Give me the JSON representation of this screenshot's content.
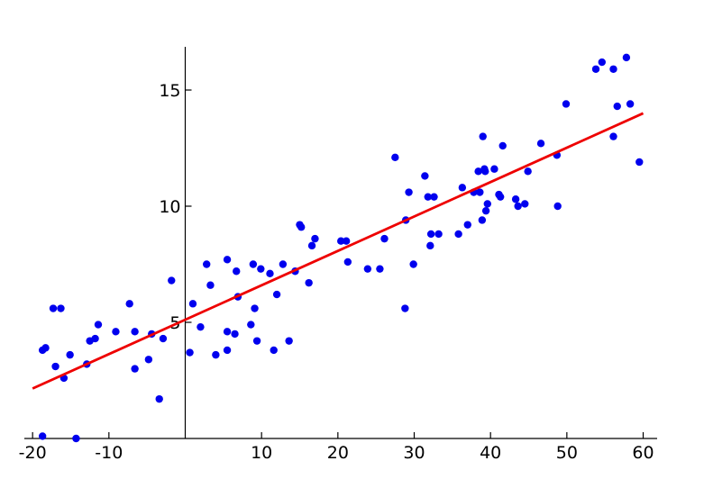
{
  "chart_data": {
    "type": "scatter",
    "title": "",
    "xlabel": "",
    "ylabel": "",
    "xlim": [
      -20,
      60
    ],
    "ylim": [
      0,
      16.5
    ],
    "grid": false,
    "legend": "none",
    "x_ticks": [
      -20,
      -10,
      10,
      20,
      30,
      40,
      50,
      60
    ],
    "x_tick_labels": [
      "-20",
      "-10",
      "10",
      "20",
      "30",
      "40",
      "50",
      "60"
    ],
    "y_ticks": [
      5,
      10,
      15
    ],
    "y_tick_labels": [
      "5",
      "10",
      "15"
    ],
    "colors": {
      "points": "#0000ee",
      "fit_line": "#ee0000",
      "axes": "#000000"
    },
    "points": [
      [
        -18.7,
        0.1
      ],
      [
        -18.7,
        3.8
      ],
      [
        -18.3,
        3.9
      ],
      [
        -17.3,
        5.6
      ],
      [
        -17.0,
        3.1
      ],
      [
        -16.3,
        5.6
      ],
      [
        -15.9,
        2.6
      ],
      [
        -15.1,
        3.6
      ],
      [
        -14.3,
        0.0
      ],
      [
        -12.9,
        3.2
      ],
      [
        -12.5,
        4.2
      ],
      [
        -11.8,
        4.3
      ],
      [
        -11.4,
        4.9
      ],
      [
        -9.1,
        4.6
      ],
      [
        -7.3,
        5.8
      ],
      [
        -6.6,
        4.6
      ],
      [
        -6.6,
        3.0
      ],
      [
        -4.8,
        3.4
      ],
      [
        -4.4,
        4.5
      ],
      [
        -3.4,
        1.7
      ],
      [
        -2.9,
        4.3
      ],
      [
        -1.8,
        6.8
      ],
      [
        0.6,
        3.7
      ],
      [
        1.0,
        5.8
      ],
      [
        2.0,
        4.8
      ],
      [
        2.8,
        7.5
      ],
      [
        3.3,
        6.6
      ],
      [
        4.0,
        3.6
      ],
      [
        5.5,
        3.8
      ],
      [
        5.5,
        4.6
      ],
      [
        5.5,
        7.7
      ],
      [
        6.5,
        4.5
      ],
      [
        6.7,
        7.2
      ],
      [
        6.9,
        6.1
      ],
      [
        8.6,
        4.9
      ],
      [
        8.9,
        7.5
      ],
      [
        9.1,
        5.6
      ],
      [
        9.4,
        4.2
      ],
      [
        9.9,
        7.3
      ],
      [
        11.1,
        7.1
      ],
      [
        11.6,
        3.8
      ],
      [
        12.0,
        6.2
      ],
      [
        12.8,
        7.5
      ],
      [
        13.6,
        4.2
      ],
      [
        14.4,
        7.2
      ],
      [
        15.0,
        9.2
      ],
      [
        15.2,
        9.1
      ],
      [
        16.2,
        6.7
      ],
      [
        16.6,
        8.3
      ],
      [
        17.0,
        8.6
      ],
      [
        20.4,
        8.5
      ],
      [
        21.1,
        8.5
      ],
      [
        21.3,
        7.6
      ],
      [
        23.9,
        7.3
      ],
      [
        25.5,
        7.3
      ],
      [
        26.1,
        8.6
      ],
      [
        27.5,
        12.1
      ],
      [
        28.8,
        5.6
      ],
      [
        28.9,
        9.4
      ],
      [
        29.3,
        10.6
      ],
      [
        29.9,
        7.5
      ],
      [
        31.4,
        11.3
      ],
      [
        31.8,
        10.4
      ],
      [
        32.1,
        8.3
      ],
      [
        32.2,
        8.8
      ],
      [
        32.6,
        10.4
      ],
      [
        33.2,
        8.8
      ],
      [
        35.8,
        8.8
      ],
      [
        36.3,
        10.8
      ],
      [
        37.0,
        9.2
      ],
      [
        37.8,
        10.6
      ],
      [
        38.4,
        11.5
      ],
      [
        38.6,
        10.6
      ],
      [
        38.9,
        9.4
      ],
      [
        39.0,
        13.0
      ],
      [
        39.2,
        11.6
      ],
      [
        39.3,
        11.5
      ],
      [
        39.4,
        9.8
      ],
      [
        39.6,
        10.1
      ],
      [
        40.5,
        11.6
      ],
      [
        41.1,
        10.5
      ],
      [
        41.3,
        10.4
      ],
      [
        41.6,
        12.6
      ],
      [
        43.3,
        10.3
      ],
      [
        43.6,
        10.0
      ],
      [
        44.5,
        10.1
      ],
      [
        44.9,
        11.5
      ],
      [
        46.6,
        12.7
      ],
      [
        48.7,
        12.2
      ],
      [
        48.8,
        10.0
      ],
      [
        49.9,
        14.4
      ],
      [
        53.8,
        15.9
      ],
      [
        54.6,
        16.2
      ],
      [
        56.1,
        15.9
      ],
      [
        56.1,
        13.0
      ],
      [
        56.6,
        14.3
      ],
      [
        57.8,
        16.4
      ],
      [
        58.3,
        14.4
      ],
      [
        59.5,
        11.9
      ]
    ],
    "fit_line": {
      "x": [
        -20,
        60
      ],
      "y": [
        2.15,
        14.0
      ]
    }
  }
}
